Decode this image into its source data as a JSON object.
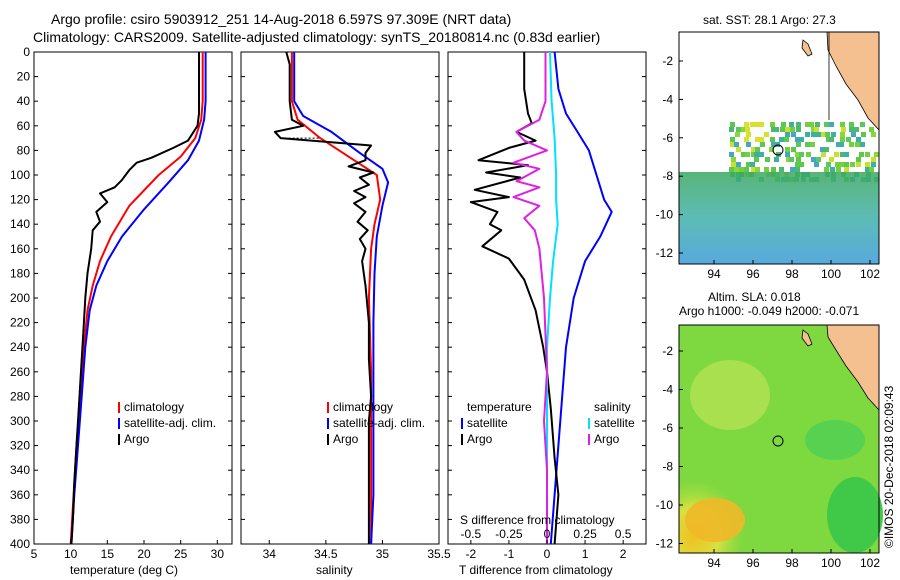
{
  "title": {
    "line1": "Argo profile: csiro 5903912_251 14-Aug-2018 6.597S 97.309E (NRT data)",
    "line2": "Climatology: CARS2009. Satellite-adjusted climatology: synTS_20180814.nc (0.83d earlier)"
  },
  "colors": {
    "climatology": "#ff0000",
    "satellite": "#0000ff",
    "argo": "#000000",
    "sal_sat": "#00e0ff",
    "sal_argo": "#e020e0"
  },
  "depth_ticks": [
    "0",
    "20",
    "40",
    "60",
    "80",
    "100",
    "120",
    "140",
    "160",
    "180",
    "200",
    "220",
    "240",
    "260",
    "280",
    "300",
    "320",
    "340",
    "360",
    "380",
    "400"
  ],
  "chart_data": [
    {
      "type": "line",
      "xlabel": "temperature (deg C)",
      "xlim": [
        5,
        32
      ],
      "ylim": [
        0,
        400
      ],
      "x_ticks": [
        "5",
        "10",
        "15",
        "20",
        "25",
        "30"
      ],
      "legend": [
        "climatology",
        "satellite-adj. clim.",
        "Argo"
      ],
      "series": [
        {
          "name": "climatology",
          "points": [
            [
              28,
              0
            ],
            [
              28,
              40
            ],
            [
              27.8,
              55
            ],
            [
              27,
              70
            ],
            [
              25,
              85
            ],
            [
              22,
              100
            ],
            [
              18,
              125
            ],
            [
              15.5,
              150
            ],
            [
              14,
              170
            ],
            [
              13,
              190
            ],
            [
              12.3,
              210
            ],
            [
              11.8,
              240
            ],
            [
              11.3,
              280
            ],
            [
              10.8,
              320
            ],
            [
              10.4,
              360
            ],
            [
              10,
              400
            ]
          ]
        },
        {
          "name": "satellite-adj. clim.",
          "points": [
            [
              28.4,
              0
            ],
            [
              28.4,
              40
            ],
            [
              28.2,
              55
            ],
            [
              27.5,
              72
            ],
            [
              26,
              88
            ],
            [
              23.5,
              105
            ],
            [
              20,
              128
            ],
            [
              17,
              150
            ],
            [
              15,
              170
            ],
            [
              13.5,
              190
            ],
            [
              12.6,
              210
            ],
            [
              12,
              240
            ],
            [
              11.5,
              280
            ],
            [
              11,
              320
            ],
            [
              10.5,
              360
            ],
            [
              10.1,
              400
            ]
          ]
        },
        {
          "name": "Argo",
          "points": [
            [
              27.5,
              0
            ],
            [
              27.5,
              50
            ],
            [
              27.3,
              60
            ],
            [
              26,
              72
            ],
            [
              24,
              78
            ],
            [
              21,
              86
            ],
            [
              19,
              90
            ],
            [
              18,
              96
            ],
            [
              17,
              104
            ],
            [
              16,
              110
            ],
            [
              14,
              115
            ],
            [
              15,
              122
            ],
            [
              13.5,
              130
            ],
            [
              14,
              138
            ],
            [
              13,
              145
            ],
            [
              12.8,
              160
            ],
            [
              12.3,
              180
            ],
            [
              12,
              200
            ],
            [
              11.8,
              220
            ],
            [
              11.5,
              250
            ],
            [
              11.2,
              280
            ],
            [
              11,
              300
            ],
            [
              10.8,
              320
            ],
            [
              10.5,
              350
            ],
            [
              10.3,
              380
            ],
            [
              10.1,
              400
            ]
          ]
        }
      ]
    },
    {
      "type": "line",
      "xlabel": "salinity",
      "xlim": [
        33.75,
        35.5
      ],
      "ylim": [
        0,
        400
      ],
      "x_ticks": [
        "34",
        "34.5",
        "35",
        "35.5"
      ],
      "legend": [
        "climatology",
        "satellite-adj. clim.",
        "Argo"
      ],
      "series": [
        {
          "name": "climatology",
          "points": [
            [
              34.2,
              0
            ],
            [
              34.2,
              40
            ],
            [
              34.25,
              55
            ],
            [
              34.45,
              70
            ],
            [
              34.7,
              85
            ],
            [
              34.95,
              100
            ],
            [
              34.98,
              120
            ],
            [
              34.93,
              140
            ],
            [
              34.9,
              160
            ],
            [
              34.88,
              200
            ],
            [
              34.9,
              260
            ],
            [
              34.9,
              300
            ],
            [
              34.9,
              350
            ],
            [
              34.9,
              400
            ]
          ]
        },
        {
          "name": "satellite-adj. clim.",
          "points": [
            [
              34.22,
              0
            ],
            [
              34.22,
              40
            ],
            [
              34.3,
              52
            ],
            [
              34.55,
              65
            ],
            [
              34.8,
              82
            ],
            [
              35.0,
              95
            ],
            [
              35.05,
              106
            ],
            [
              35.0,
              125
            ],
            [
              34.95,
              150
            ],
            [
              34.93,
              180
            ],
            [
              34.92,
              220
            ],
            [
              34.92,
              280
            ],
            [
              34.92,
              320
            ],
            [
              34.92,
              360
            ],
            [
              34.9,
              400
            ]
          ]
        },
        {
          "name": "Argo",
          "points": [
            [
              34.15,
              0
            ],
            [
              34.18,
              10
            ],
            [
              34.18,
              40
            ],
            [
              34.2,
              55
            ],
            [
              34.3,
              60
            ],
            [
              34.05,
              65
            ],
            [
              34.1,
              70
            ],
            [
              34.9,
              76
            ],
            [
              34.85,
              82
            ],
            [
              34.85,
              88
            ],
            [
              34.7,
              93
            ],
            [
              34.92,
              98
            ],
            [
              34.8,
              102
            ],
            [
              34.88,
              108
            ],
            [
              34.75,
              113
            ],
            [
              34.85,
              118
            ],
            [
              34.75,
              123
            ],
            [
              34.85,
              130
            ],
            [
              34.78,
              138
            ],
            [
              34.87,
              145
            ],
            [
              34.8,
              152
            ],
            [
              34.85,
              160
            ],
            [
              34.82,
              170
            ],
            [
              34.85,
              190
            ],
            [
              34.88,
              220
            ],
            [
              34.88,
              250
            ],
            [
              34.9,
              280
            ],
            [
              34.88,
              300
            ],
            [
              34.88,
              330
            ],
            [
              34.88,
              360
            ],
            [
              34.88,
              400
            ]
          ]
        }
      ]
    },
    {
      "type": "line",
      "xlabel": "T difference from climatology",
      "xlabel2": "S difference from climatology",
      "xlim": [
        -2.6,
        2.6
      ],
      "ylim": [
        0,
        400
      ],
      "x_ticks": [
        "-2",
        "-1",
        "0",
        "1",
        "2"
      ],
      "x2_ticks": [
        "-0.5",
        "-0.25",
        "0",
        "0.25",
        "0.5"
      ],
      "legend_left_header": "temperature",
      "legend_left": [
        "satellite",
        "Argo"
      ],
      "legend_right_header": "salinity",
      "legend_right": [
        "satellite",
        "Argo"
      ],
      "series": [
        {
          "name": "T satellite",
          "points": [
            [
              0.2,
              0
            ],
            [
              0.3,
              30
            ],
            [
              0.5,
              50
            ],
            [
              0.8,
              65
            ],
            [
              1.1,
              80
            ],
            [
              1.3,
              100
            ],
            [
              1.5,
              120
            ],
            [
              1.7,
              130
            ],
            [
              1.4,
              150
            ],
            [
              1.0,
              170
            ],
            [
              0.7,
              200
            ],
            [
              0.5,
              240
            ],
            [
              0.4,
              280
            ],
            [
              0.3,
              320
            ],
            [
              0.2,
              360
            ],
            [
              0.1,
              400
            ]
          ]
        },
        {
          "name": "T Argo",
          "points": [
            [
              -0.6,
              0
            ],
            [
              -0.6,
              30
            ],
            [
              -0.5,
              50
            ],
            [
              -0.4,
              58
            ],
            [
              -0.8,
              65
            ],
            [
              -0.3,
              72
            ],
            [
              -1.0,
              78
            ],
            [
              -1.8,
              88
            ],
            [
              -0.5,
              92
            ],
            [
              -1.6,
              98
            ],
            [
              -0.7,
              102
            ],
            [
              -1.9,
              112
            ],
            [
              -1.0,
              118
            ],
            [
              -2.0,
              122
            ],
            [
              -1.3,
              130
            ],
            [
              -1.5,
              140
            ],
            [
              -1.2,
              145
            ],
            [
              -1.7,
              158
            ],
            [
              -1.0,
              168
            ],
            [
              -0.6,
              185
            ],
            [
              -0.3,
              210
            ],
            [
              -0.1,
              240
            ],
            [
              0.0,
              260
            ],
            [
              0.1,
              290
            ],
            [
              0.2,
              330
            ],
            [
              0.3,
              360
            ],
            [
              0.2,
              400
            ]
          ]
        },
        {
          "name": "S satellite",
          "points": [
            [
              0.02,
              0
            ],
            [
              0.03,
              40
            ],
            [
              0.05,
              70
            ],
            [
              0.06,
              100
            ],
            [
              0.06,
              120
            ],
            [
              0.07,
              140
            ],
            [
              0.04,
              170
            ],
            [
              0.02,
              200
            ],
            [
              0.0,
              240
            ],
            [
              0.0,
              300
            ],
            [
              0.0,
              350
            ],
            [
              0.0,
              400
            ]
          ]
        },
        {
          "name": "S Argo",
          "points": [
            [
              -0.01,
              0
            ],
            [
              -0.01,
              40
            ],
            [
              -0.05,
              55
            ],
            [
              -0.2,
              65
            ],
            [
              -0.15,
              72
            ],
            [
              0.0,
              80
            ],
            [
              -0.22,
              90
            ],
            [
              -0.05,
              95
            ],
            [
              -0.2,
              105
            ],
            [
              -0.05,
              110
            ],
            [
              -0.22,
              118
            ],
            [
              -0.05,
              125
            ],
            [
              -0.15,
              135
            ],
            [
              -0.08,
              145
            ],
            [
              -0.05,
              160
            ],
            [
              -0.02,
              200
            ],
            [
              0.0,
              260
            ],
            [
              -0.02,
              300
            ],
            [
              0.0,
              340
            ],
            [
              0.0,
              400
            ]
          ]
        }
      ]
    }
  ],
  "sst_map": {
    "title": "sat. SST: 28.1 Argo: 27.3",
    "x_ticks": [
      "94",
      "96",
      "98",
      "100",
      "102"
    ],
    "y_ticks": [
      "-2",
      "-4",
      "-6",
      "-8",
      "-10",
      "-12"
    ]
  },
  "sla_map": {
    "title1": "Altim. SLA: 0.018",
    "title2": "Argo h1000: -0.049 h2000: -0.071",
    "x_ticks": [
      "94",
      "96",
      "98",
      "100",
      "102"
    ],
    "y_ticks": [
      "-2",
      "-4",
      "-6",
      "-8",
      "-10",
      "-12"
    ]
  },
  "credit": "©IMOS 20-Dec-2018 02:09:43"
}
